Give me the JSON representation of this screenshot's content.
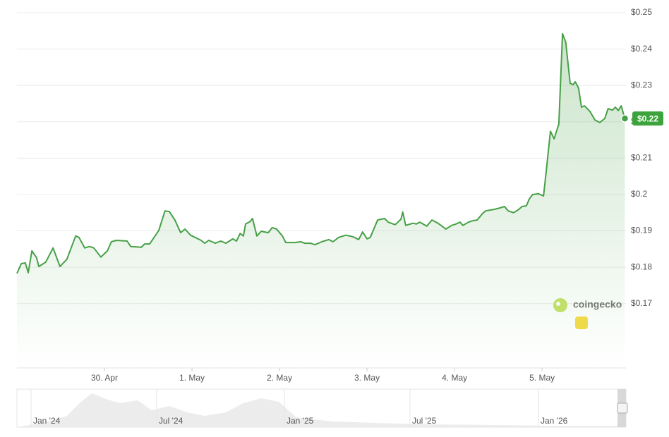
{
  "chart_data": {
    "type": "line",
    "color": "#46a046",
    "x": [
      0,
      1.2,
      2.3,
      3.1,
      4.1,
      5.4,
      6.0,
      7.9,
      9.9,
      11.8,
      13.7,
      16.1,
      17.0,
      18.6,
      19.9,
      21.1,
      23.0,
      24.8,
      25.9,
      27.3,
      30.2,
      31.2,
      34.1,
      35.0,
      36.4,
      38.9,
      40.6,
      41.8,
      43.3,
      44.9,
      46.1,
      47.6,
      50.5,
      51.5,
      52.6,
      54.4,
      55.9,
      57.3,
      59.2,
      60.2,
      61.2,
      62.1,
      62.7,
      64.0,
      64.6,
      65.8,
      67.0,
      68.9,
      70.0,
      71.2,
      72.8,
      73.7,
      76.2,
      77.8,
      78.9,
      80.5,
      81.7,
      83.6,
      85.5,
      86.7,
      88.2,
      90.2,
      92.1,
      93.7,
      94.8,
      96.0,
      96.9,
      98.9,
      100.8,
      101.8,
      103.7,
      105.3,
      105.8,
      106.6,
      108.6,
      109.5,
      110.5,
      112.4,
      113.8,
      115.3,
      116.3,
      117.6,
      119.2,
      120.4,
      121.5,
      122.3,
      123.8,
      125.0,
      126.2,
      127.7,
      128.5,
      130.8,
      132.4,
      133.7,
      134.7,
      136.2,
      137.6,
      138.5,
      139.7,
      140.5,
      141.4,
      143.0,
      144.4,
      145.1,
      146.3,
      147.3,
      148.6,
      149.6,
      150.5,
      151.7,
      152.5,
      153.1,
      154.0,
      154.8,
      155.6,
      157.1,
      158.5,
      159.8,
      161.2,
      162.1,
      163.3,
      164.1,
      164.9,
      165.7,
      166.7
    ],
    "values": [
      0.1783,
      0.181,
      0.1812,
      0.1785,
      0.1845,
      0.1826,
      0.1802,
      0.1814,
      0.1853,
      0.1802,
      0.1822,
      0.1886,
      0.1882,
      0.1853,
      0.1857,
      0.1853,
      0.1828,
      0.1845,
      0.187,
      0.1874,
      0.1872,
      0.1857,
      0.1855,
      0.1864,
      0.1864,
      0.1901,
      0.1955,
      0.1953,
      0.193,
      0.1895,
      0.1905,
      0.1888,
      0.1874,
      0.1866,
      0.1874,
      0.1866,
      0.1872,
      0.1866,
      0.1878,
      0.1872,
      0.1893,
      0.1886,
      0.1919,
      0.1926,
      0.1934,
      0.1886,
      0.1899,
      0.1895,
      0.1909,
      0.1905,
      0.1886,
      0.1868,
      0.1868,
      0.187,
      0.1866,
      0.1866,
      0.1862,
      0.187,
      0.1876,
      0.187,
      0.1882,
      0.1888,
      0.1884,
      0.1876,
      0.1897,
      0.1878,
      0.1882,
      0.193,
      0.1934,
      0.1924,
      0.1917,
      0.1932,
      0.1952,
      0.1915,
      0.1921,
      0.1919,
      0.1924,
      0.1913,
      0.193,
      0.1922,
      0.1915,
      0.1905,
      0.1915,
      0.1919,
      0.1924,
      0.1915,
      0.1924,
      0.1928,
      0.193,
      0.1948,
      0.1955,
      0.1959,
      0.1963,
      0.1967,
      0.1955,
      0.195,
      0.1959,
      0.1967,
      0.1969,
      0.1988,
      0.2,
      0.2002,
      0.1996,
      0.206,
      0.2174,
      0.2153,
      0.2194,
      0.2442,
      0.2419,
      0.2306,
      0.2302,
      0.231,
      0.2293,
      0.224,
      0.2244,
      0.2229,
      0.2205,
      0.2198,
      0.2209,
      0.2236,
      0.2232,
      0.224,
      0.2231,
      0.2244,
      0.2209
    ],
    "xlim": [
      0,
      167
    ],
    "ylim": [
      0.1527,
      0.25
    ],
    "xticks": [
      {
        "value": 24,
        "label": "30. Apr"
      },
      {
        "value": 48,
        "label": "1. May"
      },
      {
        "value": 72,
        "label": "2. May"
      },
      {
        "value": 96,
        "label": "3. May"
      },
      {
        "value": 120,
        "label": "4. May"
      },
      {
        "value": 144,
        "label": "5. May"
      }
    ],
    "yticks": [
      {
        "value": 0.17,
        "label": "$0.17"
      },
      {
        "value": 0.18,
        "label": "$0.18"
      },
      {
        "value": 0.19,
        "label": "$0.19"
      },
      {
        "value": 0.2,
        "label": "$0.2"
      },
      {
        "value": 0.21,
        "label": "$0.21"
      },
      {
        "value": 0.22,
        "label": "$0.22"
      },
      {
        "value": 0.23,
        "label": "$0.23"
      },
      {
        "value": 0.24,
        "label": "$0.24"
      },
      {
        "value": 0.25,
        "label": "$0.25"
      }
    ],
    "grid": true,
    "current_price": {
      "value": 0.2209,
      "label": "$0.22"
    },
    "watermark": "coingecko"
  },
  "navigator": {
    "labels": [
      "Jan '24",
      "Jul '24",
      "Jan '25",
      "Jul '25",
      "Jan '26"
    ]
  }
}
